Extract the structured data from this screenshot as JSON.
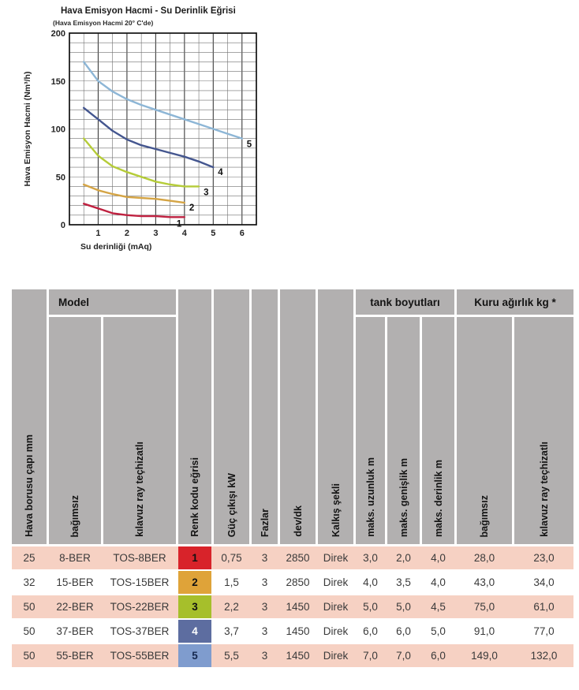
{
  "chart_data": {
    "type": "line",
    "title": "Hava Emisyon Hacmi - Su Derinlik Eğrisi",
    "subtitle": "(Hava Emisyon Hacmi 20° C'de)",
    "xlabel": "Su derinliği (mAq)",
    "ylabel": "Hava Emisyon Hacmi (Nm³/h)",
    "xlim": [
      0,
      6.5
    ],
    "ylim": [
      0,
      200
    ],
    "x_ticks": [
      1,
      2,
      3,
      4,
      5,
      6
    ],
    "y_ticks": [
      0,
      50,
      100,
      150,
      200
    ],
    "grid": {
      "x_step": 0.5,
      "y_step": 10,
      "on": true
    },
    "legend_position": "end-of-line-labels",
    "series": [
      {
        "name": "1",
        "color": "#bf2140",
        "points": [
          [
            0.5,
            22
          ],
          [
            1,
            17
          ],
          [
            1.5,
            12
          ],
          [
            2,
            10
          ],
          [
            2.5,
            9
          ],
          [
            3,
            9
          ],
          [
            3.5,
            8
          ],
          [
            4,
            8
          ]
        ]
      },
      {
        "name": "2",
        "color": "#d4a445",
        "points": [
          [
            0.5,
            42
          ],
          [
            1,
            36
          ],
          [
            1.5,
            32
          ],
          [
            2,
            29
          ],
          [
            2.5,
            28
          ],
          [
            3,
            27
          ],
          [
            3.5,
            25
          ],
          [
            4,
            23
          ]
        ]
      },
      {
        "name": "3",
        "color": "#b5cc38",
        "points": [
          [
            0.5,
            90
          ],
          [
            1,
            72
          ],
          [
            1.5,
            61
          ],
          [
            2,
            55
          ],
          [
            2.5,
            50
          ],
          [
            3,
            45
          ],
          [
            3.5,
            42
          ],
          [
            4,
            40
          ],
          [
            4.5,
            40
          ]
        ]
      },
      {
        "name": "4",
        "color": "#44568f",
        "points": [
          [
            0.5,
            122
          ],
          [
            1,
            110
          ],
          [
            1.5,
            98
          ],
          [
            2,
            89
          ],
          [
            2.5,
            83
          ],
          [
            3,
            79
          ],
          [
            3.5,
            75
          ],
          [
            4,
            71
          ],
          [
            4.5,
            66
          ],
          [
            5,
            60
          ]
        ]
      },
      {
        "name": "5",
        "color": "#8db6d6",
        "points": [
          [
            0.5,
            170
          ],
          [
            1,
            150
          ],
          [
            1.5,
            139
          ],
          [
            2,
            131
          ],
          [
            2.5,
            125
          ],
          [
            3,
            120
          ],
          [
            3.5,
            115
          ],
          [
            4,
            110
          ],
          [
            4.5,
            105
          ],
          [
            5,
            100
          ],
          [
            5.5,
            95
          ],
          [
            6,
            90
          ]
        ]
      }
    ]
  },
  "table": {
    "group_headers": {
      "model": "Model",
      "tank": "tank boyutları",
      "weight": "Kuru ağırlık kg *"
    },
    "columns": [
      "Hava borusu çapı mm",
      "bağımsız",
      "kılavuz ray teçhizatlı",
      "Renk kodu eğrisi",
      "Güç çıkışı kW",
      "Fazlar",
      "dev/dk",
      "Kalkış şekli",
      "maks. uzunluk m",
      "maks. genişlik m",
      "maks. derinlik m",
      "bağımsız",
      "kılavuz ray teçhizatlı"
    ],
    "rows": [
      {
        "cells": [
          "25",
          "8-BER",
          "TOS-8BER",
          "1",
          "0,75",
          "3",
          "2850",
          "Direk",
          "3,0",
          "2,0",
          "4,0",
          "28,0",
          "23,0"
        ],
        "code_bg": "#d8232a",
        "code_fg": "#111111"
      },
      {
        "cells": [
          "32",
          "15-BER",
          "TOS-15BER",
          "2",
          "1,5",
          "3",
          "2850",
          "Direk",
          "4,0",
          "3,5",
          "4,0",
          "43,0",
          "34,0"
        ],
        "code_bg": "#dfa339",
        "code_fg": "#111111"
      },
      {
        "cells": [
          "50",
          "22-BER",
          "TOS-22BER",
          "3",
          "2,2",
          "3",
          "1450",
          "Direk",
          "5,0",
          "5,0",
          "4,5",
          "75,0",
          "61,0"
        ],
        "code_bg": "#a6bf2b",
        "code_fg": "#111111"
      },
      {
        "cells": [
          "50",
          "37-BER",
          "TOS-37BER",
          "4",
          "3,7",
          "3",
          "1450",
          "Direk",
          "6,0",
          "6,0",
          "5,0",
          "91,0",
          "77,0"
        ],
        "code_bg": "#5d6da0",
        "code_fg": "#ffffff"
      },
      {
        "cells": [
          "50",
          "55-BER",
          "TOS-55BER",
          "5",
          "5,5",
          "3",
          "1450",
          "Direk",
          "7,0",
          "7,0",
          "6,0",
          "149,0",
          "132,0"
        ],
        "code_bg": "#7f9cce",
        "code_fg": "#15284f"
      }
    ]
  },
  "colors": {
    "header_bg": "#b2b0b0",
    "row_pink": "#f6d1c3",
    "row_white": "#ffffff",
    "grid_minor": "#707070",
    "grid_major": "#3c3c3c",
    "axis": "#111111"
  }
}
